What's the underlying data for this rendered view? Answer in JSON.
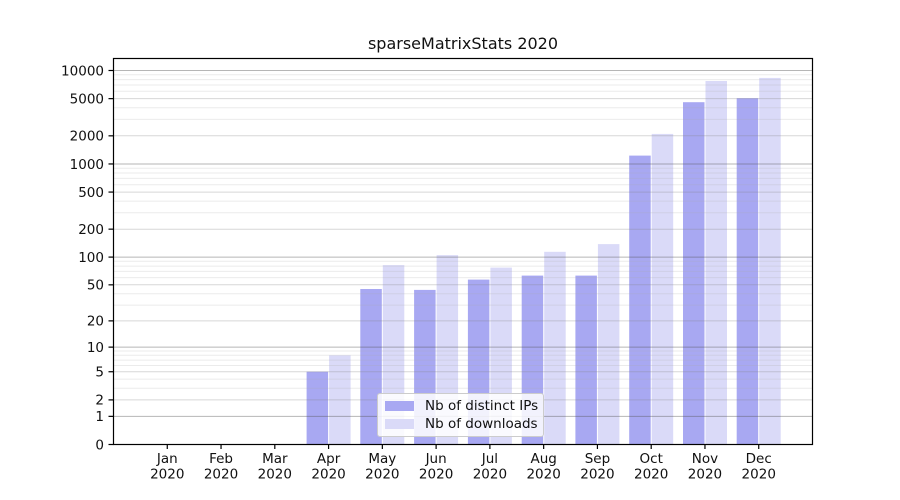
{
  "title": "sparseMatrixStats 2020",
  "chart_data": {
    "type": "bar",
    "title": "sparseMatrixStats 2020",
    "categories": [
      "Jan",
      "Feb",
      "Mar",
      "Apr",
      "May",
      "Jun",
      "Jul",
      "Aug",
      "Sep",
      "Oct",
      "Nov",
      "Dec"
    ],
    "category_year": "2020",
    "series": [
      {
        "name": "Nb of distinct IPs",
        "color": "#a8a8f2",
        "values": [
          0,
          0,
          0,
          5,
          45,
          44,
          57,
          63,
          63,
          1230,
          4580,
          5050
        ]
      },
      {
        "name": "Nb of downloads",
        "color": "#dadaf8",
        "values": [
          0,
          0,
          0,
          8,
          82,
          105,
          77,
          114,
          138,
          2100,
          7730,
          8330
        ]
      }
    ],
    "yscale": "log1p",
    "ylim": [
      0,
      10000
    ],
    "yticks": [
      0,
      1,
      2,
      5,
      10,
      20,
      50,
      100,
      200,
      500,
      1000,
      2000,
      5000,
      10000
    ],
    "grid": true,
    "legend_position": "lower center",
    "axis_color": "#000000",
    "text_color": "#111111"
  }
}
